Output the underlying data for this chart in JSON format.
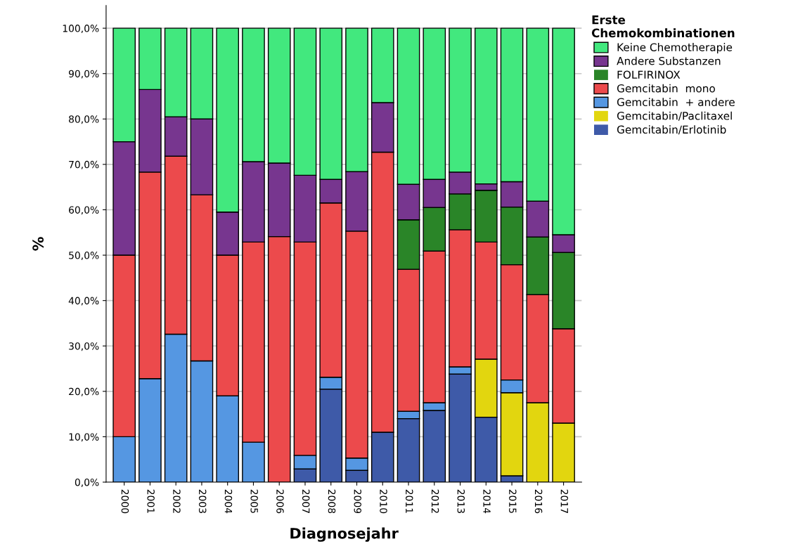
{
  "chart_data": {
    "type": "bar",
    "stacked": true,
    "xlabel": "Diagnosejahr",
    "ylabel": "%",
    "legend_title": "Erste\nChemokombinationen",
    "legend": "right",
    "grid": "y",
    "categories": [
      "2000",
      "2001",
      "2002",
      "2003",
      "2004",
      "2005",
      "2006",
      "2007",
      "2008",
      "2009",
      "2010",
      "2011",
      "2012",
      "2013",
      "2014",
      "2015",
      "2016",
      "2017"
    ],
    "ylim": [
      0,
      105
    ],
    "yticks": [
      {
        "value": 0,
        "label": "0,0%"
      },
      {
        "value": 10,
        "label": "10,0%"
      },
      {
        "value": 20,
        "label": "20,0%"
      },
      {
        "value": 30,
        "label": "30,0%"
      },
      {
        "value": 40,
        "label": "40,0%"
      },
      {
        "value": 50,
        "label": "50,0%"
      },
      {
        "value": 60,
        "label": "60,0%"
      },
      {
        "value": 70,
        "label": "70,0%"
      },
      {
        "value": 80,
        "label": "80,0%"
      },
      {
        "value": 90,
        "label": "90,0%"
      },
      {
        "value": 100,
        "label": "100,0%"
      }
    ],
    "series": [
      {
        "name": "Gemcitabin/Erlotinib",
        "color": "#3e5aa8",
        "values": [
          0,
          0,
          0,
          0,
          0,
          0,
          0,
          2.9,
          20.5,
          2.6,
          11.0,
          14.0,
          15.8,
          23.8,
          14.3,
          1.4,
          0,
          0
        ]
      },
      {
        "name": "Gemcitabin/Paclitaxel",
        "color": "#e2d60f",
        "values": [
          0,
          0,
          0,
          0,
          0,
          0,
          0,
          0,
          0,
          0,
          0,
          0,
          0,
          0,
          12.8,
          18.3,
          17.5,
          13.0
        ]
      },
      {
        "name": "Gemcitabin  + andere",
        "color": "#5597e2",
        "values": [
          10.0,
          22.8,
          32.6,
          26.7,
          19.0,
          8.8,
          0,
          3.0,
          2.6,
          2.7,
          0,
          1.6,
          1.7,
          1.6,
          0,
          2.8,
          0,
          0
        ]
      },
      {
        "name": "Gemcitabin  mono",
        "color": "#ec4a4c",
        "values": [
          40.0,
          45.5,
          39.2,
          36.6,
          31.0,
          44.1,
          54.1,
          47.0,
          38.4,
          50.0,
          61.7,
          31.3,
          33.4,
          30.2,
          25.8,
          25.4,
          23.8,
          20.8
        ]
      },
      {
        "name": "FOLFIRINOX",
        "color": "#2a8528",
        "values": [
          0,
          0,
          0,
          0,
          0,
          0,
          0,
          0,
          0,
          0,
          0,
          10.9,
          9.6,
          7.9,
          11.4,
          12.7,
          12.7,
          16.8
        ]
      },
      {
        "name": "Andere Substanzen",
        "color": "#77368f",
        "values": [
          25.0,
          18.2,
          8.7,
          16.7,
          9.5,
          17.7,
          16.2,
          14.7,
          5.2,
          13.1,
          10.9,
          7.8,
          6.2,
          4.8,
          1.4,
          5.6,
          7.9,
          3.9
        ]
      },
      {
        "name": "Keine Chemotherapie",
        "color": "#42e87e",
        "values": [
          25.0,
          13.5,
          19.5,
          20.0,
          40.5,
          29.4,
          29.7,
          32.4,
          33.3,
          31.6,
          16.4,
          34.4,
          33.3,
          31.7,
          34.3,
          33.8,
          38.1,
          45.5
        ]
      }
    ]
  }
}
